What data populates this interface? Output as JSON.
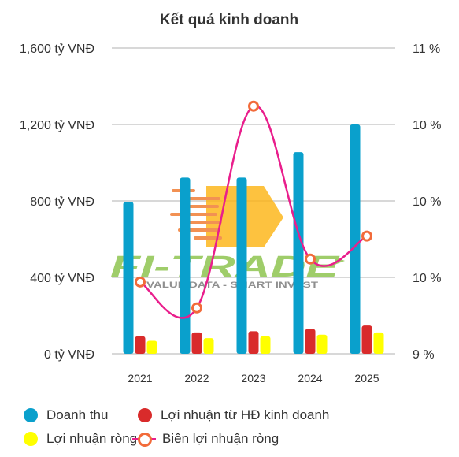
{
  "chart_data": {
    "type": "bar",
    "title": "Kết quả kinh doanh",
    "categories": [
      "2021",
      "2022",
      "2023",
      "2024",
      "2025"
    ],
    "left_axis": {
      "ylim": [
        0,
        1600
      ],
      "tick_values": [
        0,
        400,
        800,
        1200,
        1600
      ],
      "tick_labels": [
        "0 tỷ VNĐ",
        "400 tỷ VNĐ",
        "800 tỷ VNĐ",
        "1,200 tỷ VNĐ",
        "1,600 tỷ VNĐ"
      ]
    },
    "right_axis": {
      "ylim": [
        9,
        11
      ],
      "tick_values": [
        9,
        9.5,
        10,
        10.5,
        11
      ],
      "tick_labels": [
        "9 %",
        "10 %",
        "10 %",
        "10 %",
        "11 %"
      ]
    },
    "series": [
      {
        "name": "Doanh thu",
        "type": "bar",
        "axis": "left",
        "color": "#0aa0cc",
        "values": [
          795,
          922,
          922,
          1055,
          1200
        ]
      },
      {
        "name": "Lợi nhuận từ HĐ kinh doanh",
        "type": "bar",
        "axis": "left",
        "color": "#d92b2b",
        "values": [
          92,
          112,
          118,
          130,
          148
        ]
      },
      {
        "name": "Lợi nhuận ròng",
        "type": "bar",
        "axis": "left",
        "color": "#ffff00",
        "values": [
          68,
          82,
          92,
          100,
          112
        ]
      },
      {
        "name": "Biên lợi nhuận ròng",
        "type": "line",
        "axis": "right",
        "color": "#e91e8c",
        "marker_color": "#f26b3a",
        "values": [
          9.47,
          9.3,
          10.62,
          9.62,
          9.77
        ]
      }
    ],
    "grid": true,
    "legend_position": "bottom"
  },
  "watermark": {
    "text": "FI-TRADE",
    "tagline": "VALUE DATA - SMART INVEST"
  }
}
